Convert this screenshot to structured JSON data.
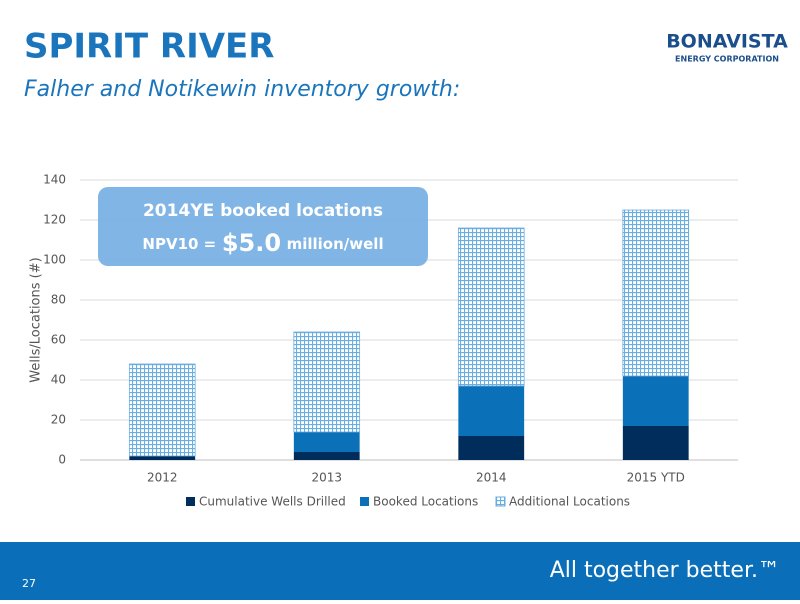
{
  "header": {
    "title": "SPIRIT RIVER",
    "subtitle": "Falher and Notikewin inventory growth:"
  },
  "logo": {
    "name": "BONAVISTA",
    "tagline": "ENERGY CORPORATION"
  },
  "callout": {
    "line1": "2014YE booked locations",
    "line2_prefix": "NPV10 =",
    "line2_value": "$5.0",
    "line2_suffix": "million/well"
  },
  "footer": {
    "page": "27",
    "slogan": "All together better.™"
  },
  "chart_data": {
    "type": "stacked_bar",
    "y_label": "Wells/Locations (#)",
    "categories": [
      "2012",
      "2013",
      "2014",
      "2015 YTD"
    ],
    "series": [
      {
        "name": "Cumulative Wells Drilled",
        "color": "#002d5c",
        "values": [
          2,
          4,
          12,
          17
        ]
      },
      {
        "name": "Booked Locations",
        "color": "#0a70b8",
        "values": [
          0,
          10,
          25,
          25
        ]
      },
      {
        "name": "Additional Locations",
        "color": "#6aaee0",
        "hatched": true,
        "values": [
          46,
          50,
          79,
          83
        ]
      }
    ],
    "ylim": [
      0,
      140
    ],
    "yticks": [
      0,
      20,
      40,
      60,
      80,
      100,
      120,
      140
    ],
    "grid": true,
    "legend": "bottom"
  }
}
